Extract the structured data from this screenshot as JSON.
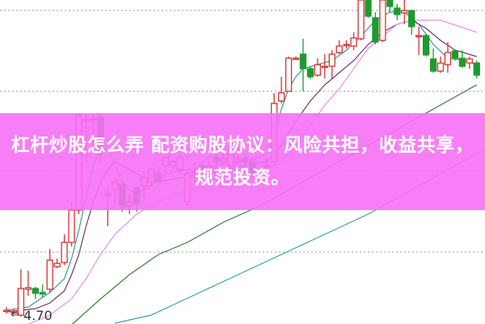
{
  "banner": {
    "title": "杠杆炒股怎么弄 配资购股协议：风险共担，收益共享，规范投资。"
  },
  "price_marker": {
    "label": "4.70",
    "arrow": "⇐"
  },
  "chart_data": {
    "type": "candlestick",
    "title": "",
    "xlabel": "",
    "ylabel": "",
    "grid": true,
    "up_color": "#d83030",
    "down_color": "#1f9a2f",
    "candles_ohlc_by_day": [
      [
        0,
        4.76,
        4.76,
        4.8,
        4.72
      ],
      [
        1,
        4.74,
        4.75,
        4.78,
        4.71
      ],
      [
        2,
        4.7,
        5.03,
        5.27,
        4.68
      ],
      [
        3,
        5.02,
        5.04,
        5.25,
        4.94
      ],
      [
        4,
        5.03,
        4.97,
        5.05,
        4.9
      ],
      [
        5,
        4.98,
        4.96,
        5.08,
        4.92
      ],
      [
        6,
        5.02,
        5.38,
        5.52,
        4.98
      ],
      [
        7,
        5.3,
        5.34,
        5.4,
        5.28
      ],
      [
        8,
        5.35,
        5.6,
        5.7,
        5.32
      ],
      [
        9,
        5.6,
        6.0,
        6.1,
        5.55
      ],
      [
        10,
        6.0,
        7.17,
        7.2,
        5.95
      ],
      [
        11,
        7.1,
        7.12,
        7.18,
        6.6
      ],
      [
        12,
        7.12,
        7.13,
        7.18,
        6.7
      ],
      [
        13,
        7.15,
        6.7,
        7.2,
        6.6
      ],
      [
        14,
        6.2,
        6.2,
        6.3,
        5.8
      ],
      [
        15,
        6.25,
        6.35,
        6.4,
        6.05
      ],
      [
        16,
        6.32,
        6.05,
        6.35,
        5.98
      ],
      [
        17,
        6.05,
        6.1,
        6.2,
        5.95
      ],
      [
        18,
        6.28,
        6.08,
        6.3,
        5.98
      ],
      [
        19,
        6.3,
        6.4,
        6.45,
        6.15
      ],
      [
        20,
        6.35,
        6.5,
        6.52,
        6.3
      ],
      [
        21,
        6.45,
        6.35,
        6.55,
        6.3
      ],
      [
        22,
        6.55,
        6.65,
        6.65,
        6.45
      ],
      [
        23,
        6.55,
        6.6,
        6.62,
        6.5
      ],
      [
        24,
        6.5,
        6.65,
        6.7,
        6.45
      ],
      [
        25,
        6.1,
        6.45,
        6.5,
        6.05
      ],
      [
        26,
        6.48,
        6.48,
        6.6,
        6.35
      ],
      [
        27,
        6.55,
        6.5,
        6.62,
        6.4
      ],
      [
        28,
        6.52,
        6.55,
        6.6,
        6.48
      ],
      [
        29,
        6.65,
        6.6,
        6.8,
        6.45
      ],
      [
        30,
        6.6,
        6.64,
        6.7,
        6.55
      ],
      [
        31,
        6.55,
        6.7,
        6.75,
        6.48
      ],
      [
        32,
        6.6,
        6.63,
        6.8,
        6.55
      ],
      [
        33,
        6.65,
        6.6,
        6.7,
        6.55
      ],
      [
        34,
        6.6,
        6.42,
        6.65,
        6.38
      ],
      [
        36,
        6.55,
        6.55,
        6.65,
        6.5
      ],
      [
        37,
        6.6,
        7.32,
        7.45,
        6.55
      ],
      [
        38,
        7.35,
        7.45,
        7.65,
        7.32
      ],
      [
        39,
        7.47,
        7.88,
        7.9,
        7.47
      ],
      [
        40,
        7.88,
        7.88,
        7.9,
        7.86
      ],
      [
        41,
        7.93,
        7.75,
        8.12,
        7.47
      ],
      [
        42,
        7.75,
        7.65,
        7.78,
        7.62
      ],
      [
        43,
        7.67,
        7.8,
        7.88,
        7.65
      ],
      [
        44,
        7.78,
        7.78,
        7.93,
        7.63
      ],
      [
        45,
        7.78,
        7.93,
        7.98,
        7.63
      ],
      [
        46,
        7.95,
        8.03,
        8.1,
        7.93
      ],
      [
        47,
        8.05,
        8.05,
        8.1,
        8.0
      ],
      [
        48,
        8.03,
        8.13,
        8.2,
        7.98
      ],
      [
        49,
        8.12,
        8.6,
        8.62,
        8.1
      ],
      [
        50,
        8.6,
        8.4,
        8.62,
        8.38
      ],
      [
        51,
        8.38,
        8.08,
        8.45,
        8.05
      ],
      [
        52,
        8.1,
        8.6,
        8.62,
        8.08
      ],
      [
        53,
        8.6,
        8.52,
        8.62,
        8.45
      ],
      [
        54,
        8.5,
        8.42,
        8.55,
        8.35
      ],
      [
        55,
        8.44,
        8.47,
        8.62,
        8.3
      ],
      [
        56,
        8.47,
        8.27,
        8.48,
        8.17
      ],
      [
        57,
        8.16,
        8.16,
        8.27,
        7.92
      ],
      [
        58,
        8.16,
        7.92,
        8.18,
        7.9
      ],
      [
        59,
        7.87,
        7.72,
        8.0,
        7.7
      ],
      [
        60,
        7.72,
        7.82,
        7.9,
        7.7
      ],
      [
        61,
        7.8,
        7.95,
        8.08,
        7.7
      ],
      [
        62,
        7.97,
        7.88,
        7.98,
        7.85
      ],
      [
        63,
        7.88,
        7.78,
        7.98,
        7.76
      ],
      [
        64,
        7.82,
        7.87,
        7.9,
        7.75
      ],
      [
        65,
        7.82,
        7.67,
        7.85,
        7.63
      ]
    ],
    "moving_averages": [
      {
        "color": "#3a9a9a",
        "points": [
          [
            0,
            4.76
          ],
          [
            3,
            4.8
          ],
          [
            6,
            4.98
          ],
          [
            8,
            5.15
          ],
          [
            9,
            5.4
          ],
          [
            10,
            5.75
          ],
          [
            11,
            6.15
          ],
          [
            12,
            6.55
          ],
          [
            13,
            6.75
          ],
          [
            14,
            6.75
          ],
          [
            15,
            6.55
          ],
          [
            16,
            6.35
          ],
          [
            17,
            6.25
          ],
          [
            18,
            6.2
          ],
          [
            20,
            6.3
          ],
          [
            22,
            6.45
          ],
          [
            25,
            6.5
          ],
          [
            28,
            6.52
          ],
          [
            31,
            6.6
          ],
          [
            34,
            6.62
          ],
          [
            36,
            6.7
          ],
          [
            37,
            6.95
          ],
          [
            38,
            7.25
          ],
          [
            39,
            7.5
          ],
          [
            40,
            7.65
          ],
          [
            41,
            7.75
          ],
          [
            43,
            7.8
          ],
          [
            45,
            7.85
          ],
          [
            47,
            7.98
          ],
          [
            49,
            8.15
          ],
          [
            51,
            8.35
          ],
          [
            53,
            8.45
          ],
          [
            55,
            8.45
          ],
          [
            57,
            8.3
          ],
          [
            59,
            8.05
          ],
          [
            61,
            7.88
          ],
          [
            63,
            7.86
          ],
          [
            65,
            7.8
          ]
        ]
      },
      {
        "color": "#6a3a6a",
        "points": [
          [
            0,
            4.74
          ],
          [
            4,
            4.78
          ],
          [
            6,
            4.85
          ],
          [
            8,
            5.0
          ],
          [
            9,
            5.2
          ],
          [
            10,
            5.45
          ],
          [
            11,
            5.8
          ],
          [
            12,
            6.1
          ],
          [
            13,
            6.35
          ],
          [
            14,
            6.5
          ],
          [
            15,
            6.6
          ],
          [
            17,
            6.5
          ],
          [
            19,
            6.4
          ],
          [
            21,
            6.35
          ],
          [
            24,
            6.4
          ],
          [
            28,
            6.45
          ],
          [
            33,
            6.55
          ],
          [
            36,
            6.6
          ],
          [
            38,
            6.8
          ],
          [
            40,
            7.1
          ],
          [
            42,
            7.35
          ],
          [
            44,
            7.55
          ],
          [
            46,
            7.7
          ],
          [
            48,
            7.85
          ],
          [
            50,
            8.05
          ],
          [
            52,
            8.2
          ],
          [
            54,
            8.3
          ],
          [
            56,
            8.35
          ],
          [
            58,
            8.25
          ],
          [
            60,
            8.1
          ],
          [
            62,
            7.98
          ],
          [
            65,
            7.9
          ]
        ]
      },
      {
        "color": "#e890e8",
        "points": [
          [
            2,
            4.55
          ],
          [
            6,
            4.7
          ],
          [
            9,
            4.9
          ],
          [
            11,
            5.15
          ],
          [
            13,
            5.45
          ],
          [
            15,
            5.7
          ],
          [
            18,
            5.95
          ],
          [
            21,
            6.1
          ],
          [
            25,
            6.25
          ],
          [
            30,
            6.35
          ],
          [
            35,
            6.45
          ],
          [
            38,
            6.6
          ],
          [
            40,
            6.8
          ],
          [
            42,
            7.05
          ],
          [
            44,
            7.3
          ],
          [
            46,
            7.5
          ],
          [
            48,
            7.75
          ],
          [
            50,
            8.0
          ],
          [
            52,
            8.15
          ],
          [
            54,
            8.3
          ],
          [
            56,
            8.35
          ],
          [
            60,
            8.35
          ],
          [
            65,
            8.2
          ]
        ]
      },
      {
        "color": "#3a7a3a",
        "points": [
          [
            9,
            4.58
          ],
          [
            13,
            4.9
          ],
          [
            17,
            5.2
          ],
          [
            21,
            5.45
          ],
          [
            25,
            5.6
          ],
          [
            30,
            5.85
          ],
          [
            35,
            6.05
          ],
          [
            40,
            6.3
          ],
          [
            45,
            6.55
          ],
          [
            50,
            6.8
          ],
          [
            55,
            7.05
          ],
          [
            60,
            7.3
          ],
          [
            65,
            7.55
          ]
        ]
      },
      {
        "color": "#3aa0b0",
        "points": [
          [
            15,
            4.6
          ],
          [
            20,
            4.7
          ],
          [
            26,
            4.95
          ],
          [
            32,
            5.2
          ],
          [
            38,
            5.45
          ],
          [
            44,
            5.7
          ],
          [
            50,
            5.95
          ],
          [
            56,
            6.25
          ],
          [
            62,
            6.55
          ],
          [
            66,
            6.75
          ]
        ]
      }
    ]
  }
}
